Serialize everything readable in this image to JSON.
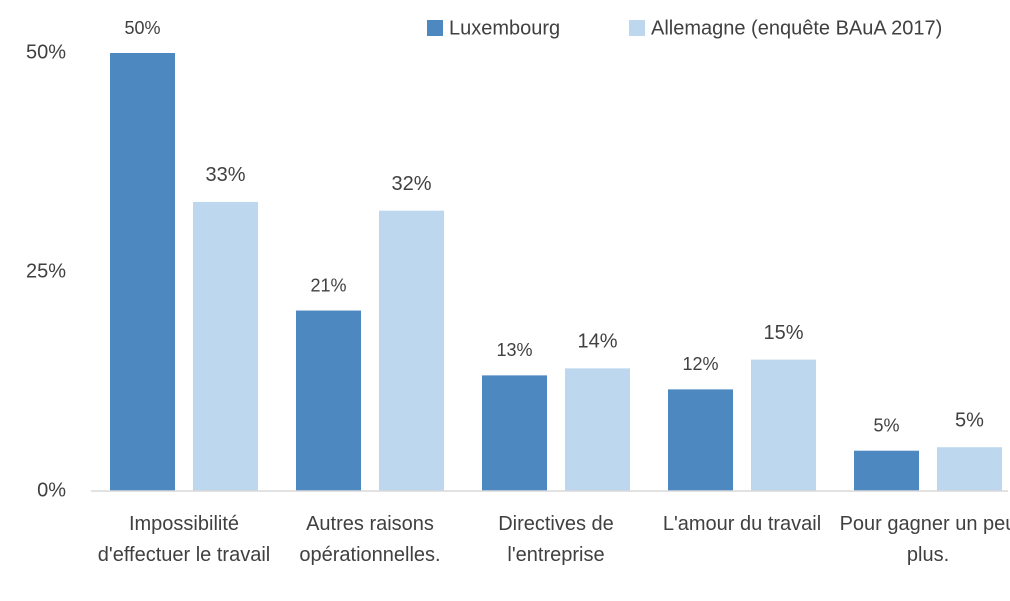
{
  "chart_data": {
    "type": "bar",
    "categories": [
      "Impossibilité d'effectuer le travail",
      "Autres raisons opérationnelles.",
      "Directives de l'entreprise",
      "L'amour du travail",
      "Pour gagner un peu plus."
    ],
    "series": [
      {
        "name": "Luxembourg",
        "color": "#4e88c0",
        "values": [
          50,
          20.6,
          13.2,
          11.6,
          4.6
        ],
        "value_labels": [
          "50%",
          "21%",
          "13%",
          "12%",
          "5%"
        ]
      },
      {
        "name": "Allemagne (enquête BAuA 2017)",
        "color": "#bdd7ee",
        "values": [
          33,
          32,
          14,
          15,
          5
        ],
        "value_labels": [
          "33%",
          "32%",
          "14%",
          "15%",
          "5%"
        ]
      }
    ],
    "ylim": [
      0,
      50
    ],
    "yticks": [
      {
        "value": 0,
        "label": "0%"
      },
      {
        "value": 25,
        "label": "25%"
      },
      {
        "value": 50,
        "label": "50%"
      }
    ],
    "grid": false,
    "legend": "top"
  }
}
